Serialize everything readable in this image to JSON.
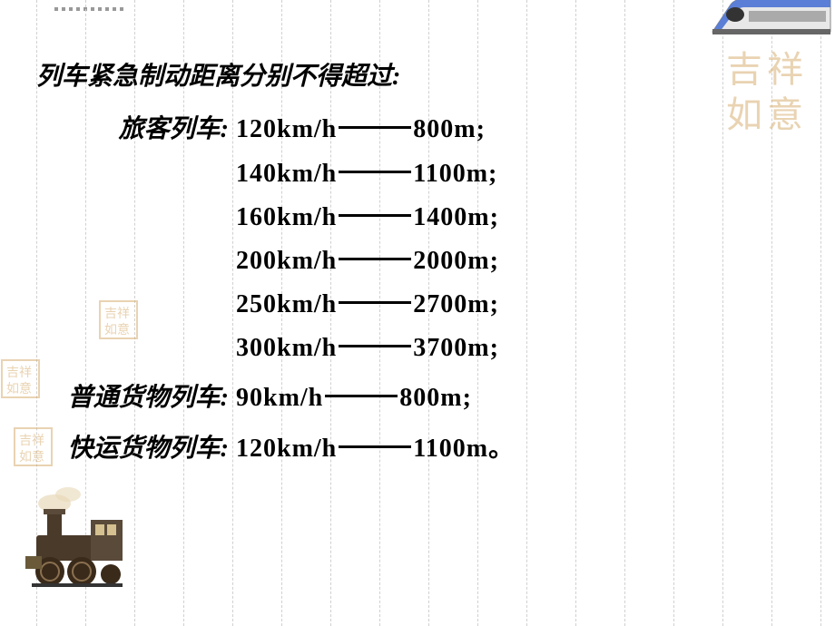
{
  "title": "列车紧急制动距离分别不得超过:",
  "categories": {
    "passenger": {
      "label": "旅客列车:",
      "rows": [
        {
          "speed": "120km/h",
          "distance": "800m;"
        },
        {
          "speed": "140km/h",
          "distance": "1100m;"
        },
        {
          "speed": "160km/h",
          "distance": "1400m;"
        },
        {
          "speed": "200km/h",
          "distance": "2000m;"
        },
        {
          "speed": "250km/h",
          "distance": "2700m;"
        },
        {
          "speed": "300km/h",
          "distance": "3700m;"
        }
      ]
    },
    "freight_normal": {
      "label": "普通货物列车:",
      "rows": [
        {
          "speed": "90km/h",
          "distance": "800m;"
        }
      ]
    },
    "freight_express": {
      "label": "快运货物列车:",
      "rows": [
        {
          "speed": "120km/h",
          "distance": "1100m。"
        }
      ]
    }
  },
  "style": {
    "ruled_line_count": 17,
    "ruled_line_spacing": 54,
    "ruled_line_start": 40,
    "ruled_line_color": "#d0d0d0",
    "text_color": "#000000",
    "bg_color": "#ffffff",
    "font_size": 28,
    "separator_width": 80,
    "category_label_width": 220,
    "seal_color": "#d4a968",
    "train_body_color": "#e8e8e8",
    "train_accent_color": "#5b7fd6",
    "locomotive_color": "#4a3a2a"
  }
}
